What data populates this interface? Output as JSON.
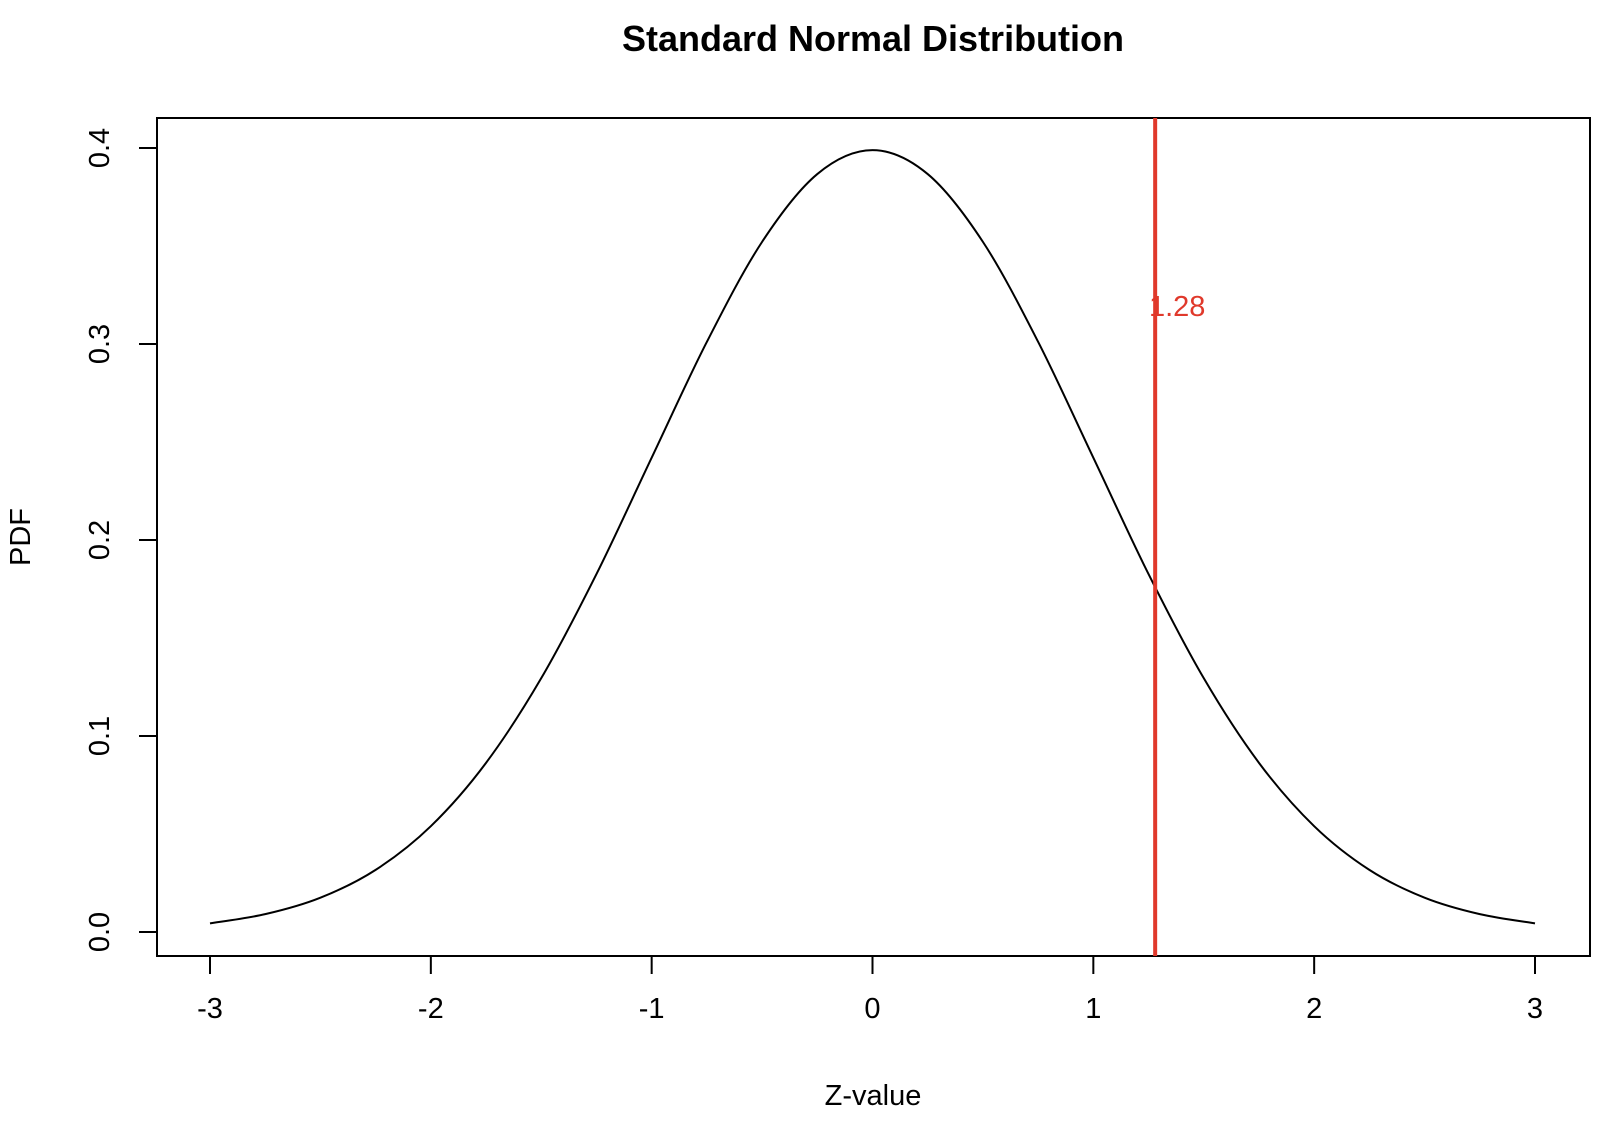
{
  "chart_data": {
    "type": "line",
    "title": "Standard Normal Distribution",
    "xlabel": "Z-value",
    "ylabel": "PDF",
    "xlim": [
      -3,
      3
    ],
    "ylim": [
      0,
      0.4
    ],
    "x_ticks": [
      "-3",
      "-2",
      "-1",
      "0",
      "1",
      "2",
      "3"
    ],
    "y_ticks": [
      "0.0",
      "0.1",
      "0.2",
      "0.3",
      "0.4"
    ],
    "grid": false,
    "series": [
      {
        "x": [
          -3.0,
          -2.75,
          -2.5,
          -2.25,
          -2.0,
          -1.75,
          -1.5,
          -1.25,
          -1.0,
          -0.75,
          -0.5,
          -0.25,
          0.0,
          0.25,
          0.5,
          0.75,
          1.0,
          1.25,
          1.5,
          1.75,
          2.0,
          2.25,
          2.5,
          2.75,
          3.0
        ],
        "y": [
          0.0044,
          0.0091,
          0.0175,
          0.0317,
          0.054,
          0.0863,
          0.1295,
          0.1826,
          0.242,
          0.3011,
          0.3521,
          0.3867,
          0.3989,
          0.3867,
          0.3521,
          0.3011,
          0.242,
          0.1826,
          0.1295,
          0.0863,
          0.054,
          0.0317,
          0.0175,
          0.0091,
          0.0044
        ],
        "color": "#000000"
      }
    ],
    "vline": {
      "x": 1.28,
      "label": "1.28",
      "color": "#e0392b"
    }
  }
}
